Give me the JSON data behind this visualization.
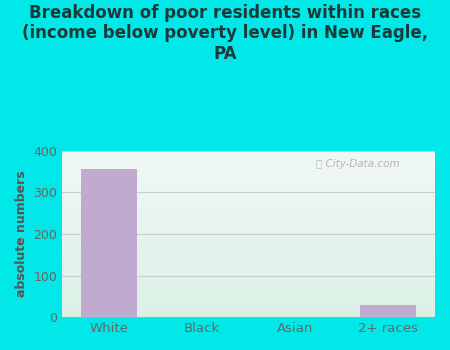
{
  "categories": [
    "White",
    "Black",
    "Asian",
    "2+ races"
  ],
  "values": [
    355,
    0,
    0,
    30
  ],
  "bar_color": "#c0aad0",
  "title": "Breakdown of poor residents within races\n(income below poverty level) in New Eagle,\nPA",
  "ylabel": "absolute numbers",
  "ylim": [
    0,
    400
  ],
  "yticks": [
    0,
    100,
    200,
    300,
    400
  ],
  "title_fontsize": 12,
  "title_color": "#1a3a3a",
  "label_color": "#666666",
  "ylabel_color": "#555555",
  "outer_bg": "#00e8e8",
  "plot_bg_topleft": "#ddf0df",
  "plot_bg_topright": "#e8f5f8",
  "plot_bg_bottomleft": "#d8eedb",
  "plot_bg_bottomright": "#e0f4f0",
  "watermark": "City-Data.com",
  "grid_color": "#cccccc"
}
